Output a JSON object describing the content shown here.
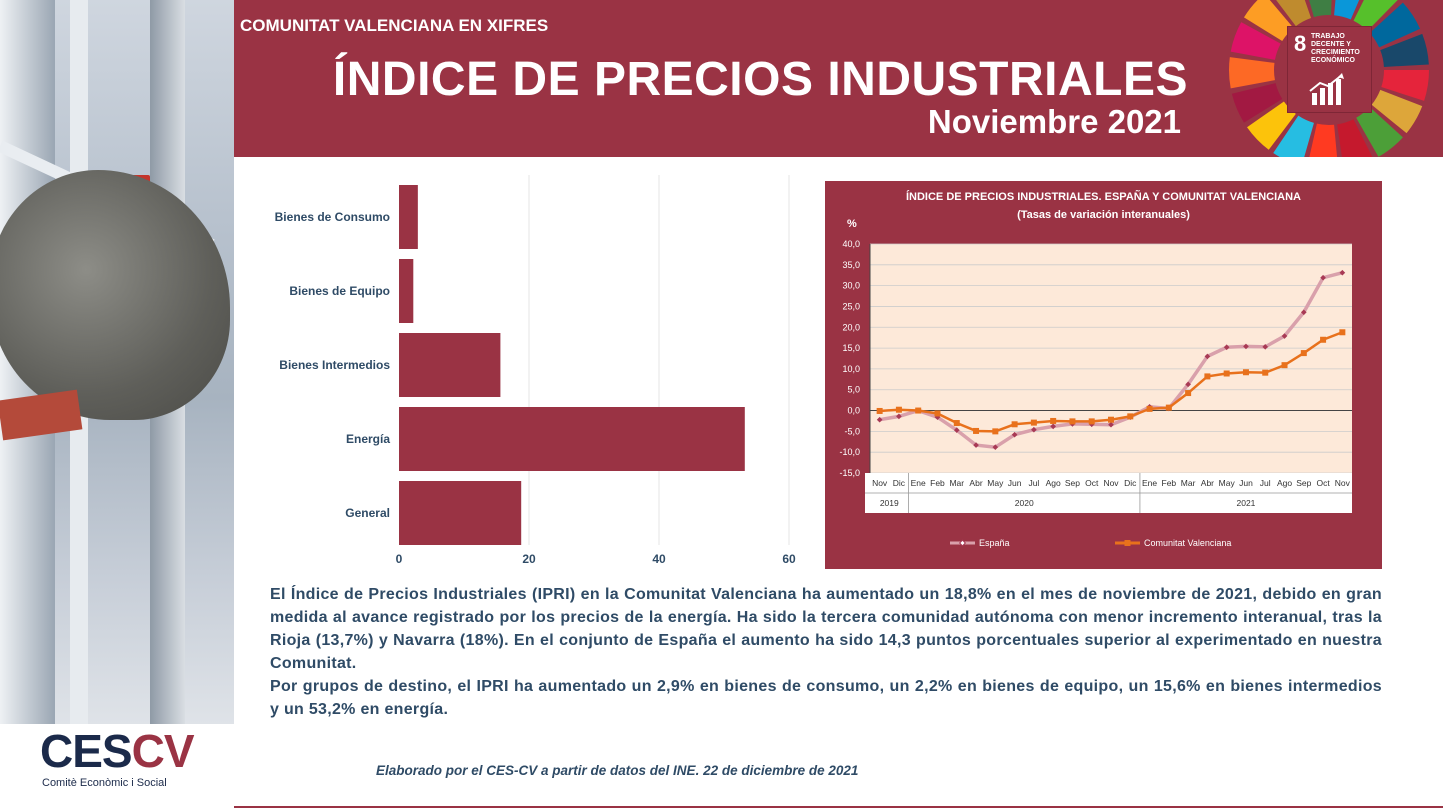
{
  "header": {
    "kicker": "COMUNITAT VALENCIANA EN XIFRES",
    "title": "ÍNDICE DE PRECIOS INDUSTRIALES",
    "subtitle": "Noviembre 2021",
    "sdg_number": "8",
    "sdg_text": "TRABAJO DECENTE Y CRECIMIENTO ECONÓMICO"
  },
  "colors": {
    "brand": "#9a3344",
    "text": "#2f4b66",
    "plot_bg": "#fde9d9",
    "espana": "#d9a0ab",
    "cv": "#e8711c"
  },
  "chart_data": [
    {
      "type": "bar",
      "orientation": "horizontal",
      "categories": [
        "Bienes de Consumo",
        "Bienes de Equipo",
        "Bienes Intermedios",
        "Energía",
        "General"
      ],
      "values": [
        2.9,
        2.2,
        15.6,
        53.2,
        18.8
      ],
      "xlim": [
        0,
        60
      ],
      "xticks": [
        "0",
        "20",
        "40",
        "60"
      ],
      "grid": true,
      "color": "#9a3344"
    },
    {
      "type": "line",
      "title": "ÍNDICE DE PRECIOS INDUSTRIALES. ESPAÑA Y COMUNITAT VALENCIANA",
      "subtitle": "(Tasas de variación interanuales)",
      "ylabel": "%",
      "ylim": [
        -15,
        40
      ],
      "yticks": [
        "40,0",
        "35,0",
        "30,0",
        "25,0",
        "20,0",
        "15,0",
        "10,0",
        "5,0",
        "0,0",
        "-5,0",
        "-10,0",
        "-15,0"
      ],
      "x": [
        "Nov",
        "Dic",
        "Ene",
        "Feb",
        "Mar",
        "Abr",
        "May",
        "Jun",
        "Jul",
        "Ago",
        "Sep",
        "Oct",
        "Nov",
        "Dic",
        "Ene",
        "Feb",
        "Mar",
        "Abr",
        "May",
        "Jun",
        "Jul",
        "Ago",
        "Sep",
        "Oct",
        "Nov"
      ],
      "year_groups": [
        {
          "label": "2019",
          "span": 2
        },
        {
          "label": "2020",
          "span": 12
        },
        {
          "label": "2021",
          "span": 11
        }
      ],
      "series": [
        {
          "name": "España",
          "values": [
            -2.2,
            -1.4,
            0.0,
            -1.6,
            -4.7,
            -8.3,
            -8.8,
            -5.8,
            -4.6,
            -3.8,
            -3.2,
            -3.3,
            -3.4,
            -1.6,
            0.9,
            0.5,
            6.3,
            13.0,
            15.2,
            15.4,
            15.3,
            17.9,
            23.6,
            31.9,
            33.1
          ]
        },
        {
          "name": "Comunitat Valenciana",
          "values": [
            -0.1,
            0.2,
            0.0,
            -0.7,
            -3.0,
            -4.9,
            -5.0,
            -3.3,
            -2.9,
            -2.5,
            -2.6,
            -2.6,
            -2.2,
            -1.4,
            0.4,
            0.7,
            4.2,
            8.2,
            8.9,
            9.2,
            9.1,
            10.9,
            13.8,
            17.0,
            18.8
          ]
        }
      ],
      "legend_placement": "bottom"
    }
  ],
  "body": {
    "p1": "El Índice de Precios Industriales (IPRI) en la Comunitat Valenciana ha aumentado un 18,8% en el mes de noviembre de 2021, debido en gran medida al avance registrado por los precios de la energía. Ha sido la tercera comunidad autónoma con menor incremento interanual, tras la Rioja (13,7%) y Navarra (18%). En el conjunto de España el aumento ha sido 14,3 puntos porcentuales superior al experimentado en nuestra Comunitat.",
    "p2": "Por grupos de destino, el IPRI ha aumentado un 2,9% en bienes de consumo, un 2,2% en bienes de equipo,  un 15,6% en bienes intermedios y un 53,2% en energía."
  },
  "footer": {
    "credit": "Elaborado por el CES-CV a partir de datos del INE. 22 de diciembre de 2021",
    "logo_ces": "CES",
    "logo_cv": "CV",
    "logo_sub": "Comitè Econòmic i Social"
  }
}
